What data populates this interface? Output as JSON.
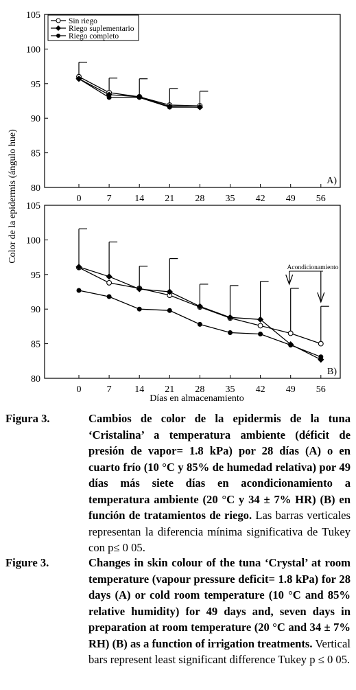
{
  "chart_data": [
    {
      "type": "line",
      "panel_label": "A)",
      "ylabel": "Color de la epidermis (ángulo hue)",
      "ylim": [
        80,
        105
      ],
      "yticks": [
        80,
        85,
        90,
        95,
        100,
        105
      ],
      "xticks": [
        "0",
        "7",
        "14",
        "21",
        "28",
        "35",
        "42",
        "49",
        "56"
      ],
      "legend_position": "top-left",
      "series": [
        {
          "name": "Sin riego",
          "marker": "open-circle",
          "x": [
            0,
            7,
            14,
            21,
            28
          ],
          "y": [
            96.0,
            93.7,
            93.1,
            91.9,
            91.8
          ]
        },
        {
          "name": "Riego suplementario",
          "marker": "filled-diamond",
          "x": [
            0,
            7,
            14,
            21,
            28
          ],
          "y": [
            95.7,
            93.4,
            93.1,
            91.7,
            91.6
          ]
        },
        {
          "name": "Riego completo",
          "marker": "filled-circle",
          "x": [
            0,
            7,
            14,
            21,
            28
          ],
          "y": [
            95.7,
            93.0,
            93.0,
            91.6,
            91.6
          ]
        }
      ],
      "error_bars": [
        {
          "x": 0,
          "from": 96.0,
          "to": 98.1
        },
        {
          "x": 7,
          "from": 93.7,
          "to": 95.8
        },
        {
          "x": 14,
          "from": 93.1,
          "to": 95.7
        },
        {
          "x": 21,
          "from": 91.9,
          "to": 94.3
        },
        {
          "x": 28,
          "from": 91.8,
          "to": 93.9
        }
      ]
    },
    {
      "type": "line",
      "panel_label": "B)",
      "xlabel": "Días en almacenamiento",
      "ylim": [
        80,
        105
      ],
      "yticks": [
        80,
        85,
        90,
        95,
        100,
        105
      ],
      "xticks": [
        "0",
        "7",
        "14",
        "21",
        "28",
        "35",
        "42",
        "49",
        "56"
      ],
      "series": [
        {
          "name": "Sin riego",
          "marker": "open-circle",
          "x": [
            0,
            7,
            14,
            21,
            28,
            35,
            42,
            49,
            56
          ],
          "y": [
            96.0,
            93.8,
            93.0,
            92.0,
            90.3,
            88.7,
            87.6,
            86.5,
            85.0
          ]
        },
        {
          "name": "Riego suplementario",
          "marker": "filled-diamond",
          "x": [
            0,
            7,
            14,
            21,
            28,
            35,
            42,
            49,
            56
          ],
          "y": [
            96.1,
            94.7,
            92.9,
            92.5,
            90.4,
            88.8,
            88.5,
            84.9,
            82.7
          ]
        },
        {
          "name": "Riego completo",
          "marker": "filled-circle",
          "x": [
            0,
            7,
            14,
            21,
            28,
            35,
            42,
            49,
            56
          ],
          "y": [
            92.7,
            91.8,
            90.0,
            89.8,
            87.8,
            86.6,
            86.4,
            84.8,
            83.1
          ]
        }
      ],
      "error_bars": [
        {
          "x": 0,
          "from": 96.1,
          "to": 101.6
        },
        {
          "x": 7,
          "from": 94.7,
          "to": 99.7
        },
        {
          "x": 14,
          "from": 93.0,
          "to": 96.2
        },
        {
          "x": 21,
          "from": 92.5,
          "to": 97.3
        },
        {
          "x": 28,
          "from": 90.4,
          "to": 93.6
        },
        {
          "x": 35,
          "from": 88.8,
          "to": 93.4
        },
        {
          "x": 42,
          "from": 88.5,
          "to": 94.0
        },
        {
          "x": 49,
          "from": 86.5,
          "to": 93.0
        },
        {
          "x": 56,
          "from": 85.0,
          "to": 90.4
        }
      ],
      "annotation": {
        "text": "Acondicionamiento",
        "arrows_at_x": [
          49,
          56
        ]
      }
    }
  ],
  "caption": {
    "es_label": "Figura 3.",
    "es_bold": "Cambios de color de la epidermis de la tuna ‘Cristalina’ a temperatura ambiente (déficit de presión de vapor= 1.8 kPa) por 28 días (A) o en cuarto frío (10 °C y 85% de humedad relativa) por 49 días más siete días en acondicionamiento a temperatura ambiente (20 °C y 34 ± 7% HR) (B) en función de tratamientos de riego.",
    "es_normal": " Las barras verticales representan la diferencia mínima significativa de Tukey con p≤ 0 05.",
    "en_label": "Figure 3.",
    "en_bold": "Changes in skin colour of the tuna ‘Crystal’ at room temperature (vapour pressure deficit= 1.8 kPa) for 28 days (A) or cold room temperature (10 °C and 85% relative humidity) for 49 days and, seven days in preparation at room temperature (20 °C and 34 ± 7% RH) (B) as a function of irrigation treatments.",
    "en_normal": " Vertical bars represent least significant difference Tukey p ≤ 0 05."
  }
}
